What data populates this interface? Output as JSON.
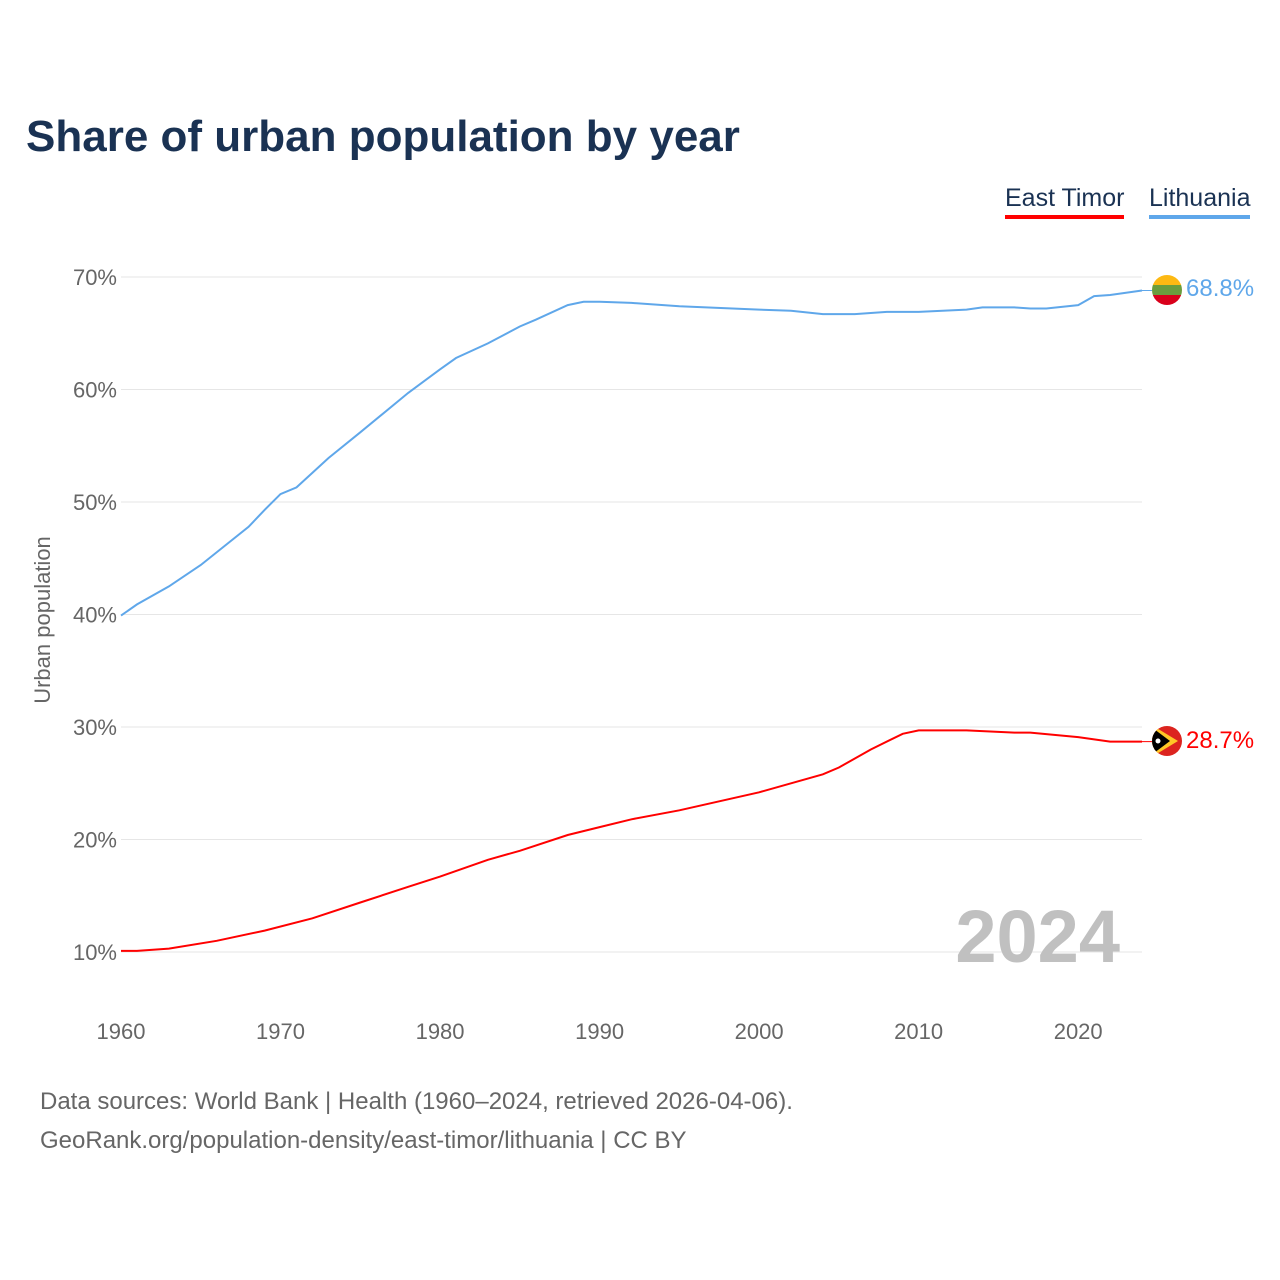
{
  "chart_data": {
    "type": "line",
    "title": "Share of urban population by year",
    "ylabel": "Urban population",
    "xlabel": "",
    "xlim": [
      1960,
      2024
    ],
    "ylim": [
      5,
      72
    ],
    "x_ticks": [
      "1960",
      "1970",
      "1980",
      "1990",
      "2000",
      "2010",
      "2020"
    ],
    "y_ticks": [
      "10%",
      "20%",
      "30%",
      "40%",
      "50%",
      "60%",
      "70%"
    ],
    "grid": true,
    "legend_position": "top-right",
    "current_year_label": "2024",
    "series": [
      {
        "name": "East Timor",
        "color": "#ff0000",
        "end_label": "28.7%",
        "x": [
          1960,
          1961,
          1963,
          1966,
          1969,
          1972,
          1975,
          1978,
          1980,
          1983,
          1985,
          1988,
          1990,
          1992,
          1995,
          2000,
          2004,
          2005,
          2007,
          2009,
          2010,
          2013,
          2016,
          2017,
          2020,
          2022,
          2024
        ],
        "y": [
          10.1,
          10.1,
          10.3,
          11.0,
          11.9,
          13.0,
          14.4,
          15.8,
          16.7,
          18.2,
          19.0,
          20.4,
          21.1,
          21.8,
          22.6,
          24.2,
          25.8,
          26.4,
          28.0,
          29.4,
          29.7,
          29.7,
          29.5,
          29.5,
          29.1,
          28.7,
          28.7
        ]
      },
      {
        "name": "Lithuania",
        "color": "#5fa7ea",
        "end_label": "68.8%",
        "x": [
          1960,
          1961,
          1963,
          1965,
          1968,
          1969,
          1970,
          1971,
          1973,
          1975,
          1978,
          1980,
          1981,
          1983,
          1985,
          1986,
          1988,
          1989,
          1990,
          1992,
          1995,
          2000,
          2002,
          2004,
          2006,
          2008,
          2010,
          2013,
          2014,
          2016,
          2017,
          2018,
          2020,
          2021,
          2022,
          2024
        ],
        "y": [
          39.9,
          40.9,
          42.5,
          44.4,
          47.8,
          49.3,
          50.7,
          51.3,
          53.9,
          56.2,
          59.7,
          61.8,
          62.8,
          64.1,
          65.6,
          66.2,
          67.5,
          67.8,
          67.8,
          67.7,
          67.4,
          67.1,
          67.0,
          66.7,
          66.7,
          66.9,
          66.9,
          67.1,
          67.3,
          67.3,
          67.2,
          67.2,
          67.5,
          68.3,
          68.4,
          68.8
        ]
      }
    ]
  },
  "footer": {
    "line1": "Data sources: World Bank | Health (1960–2024, retrieved 2026-04-06).",
    "line2": "GeoRank.org/population-density/east-timor/lithuania | CC BY"
  }
}
